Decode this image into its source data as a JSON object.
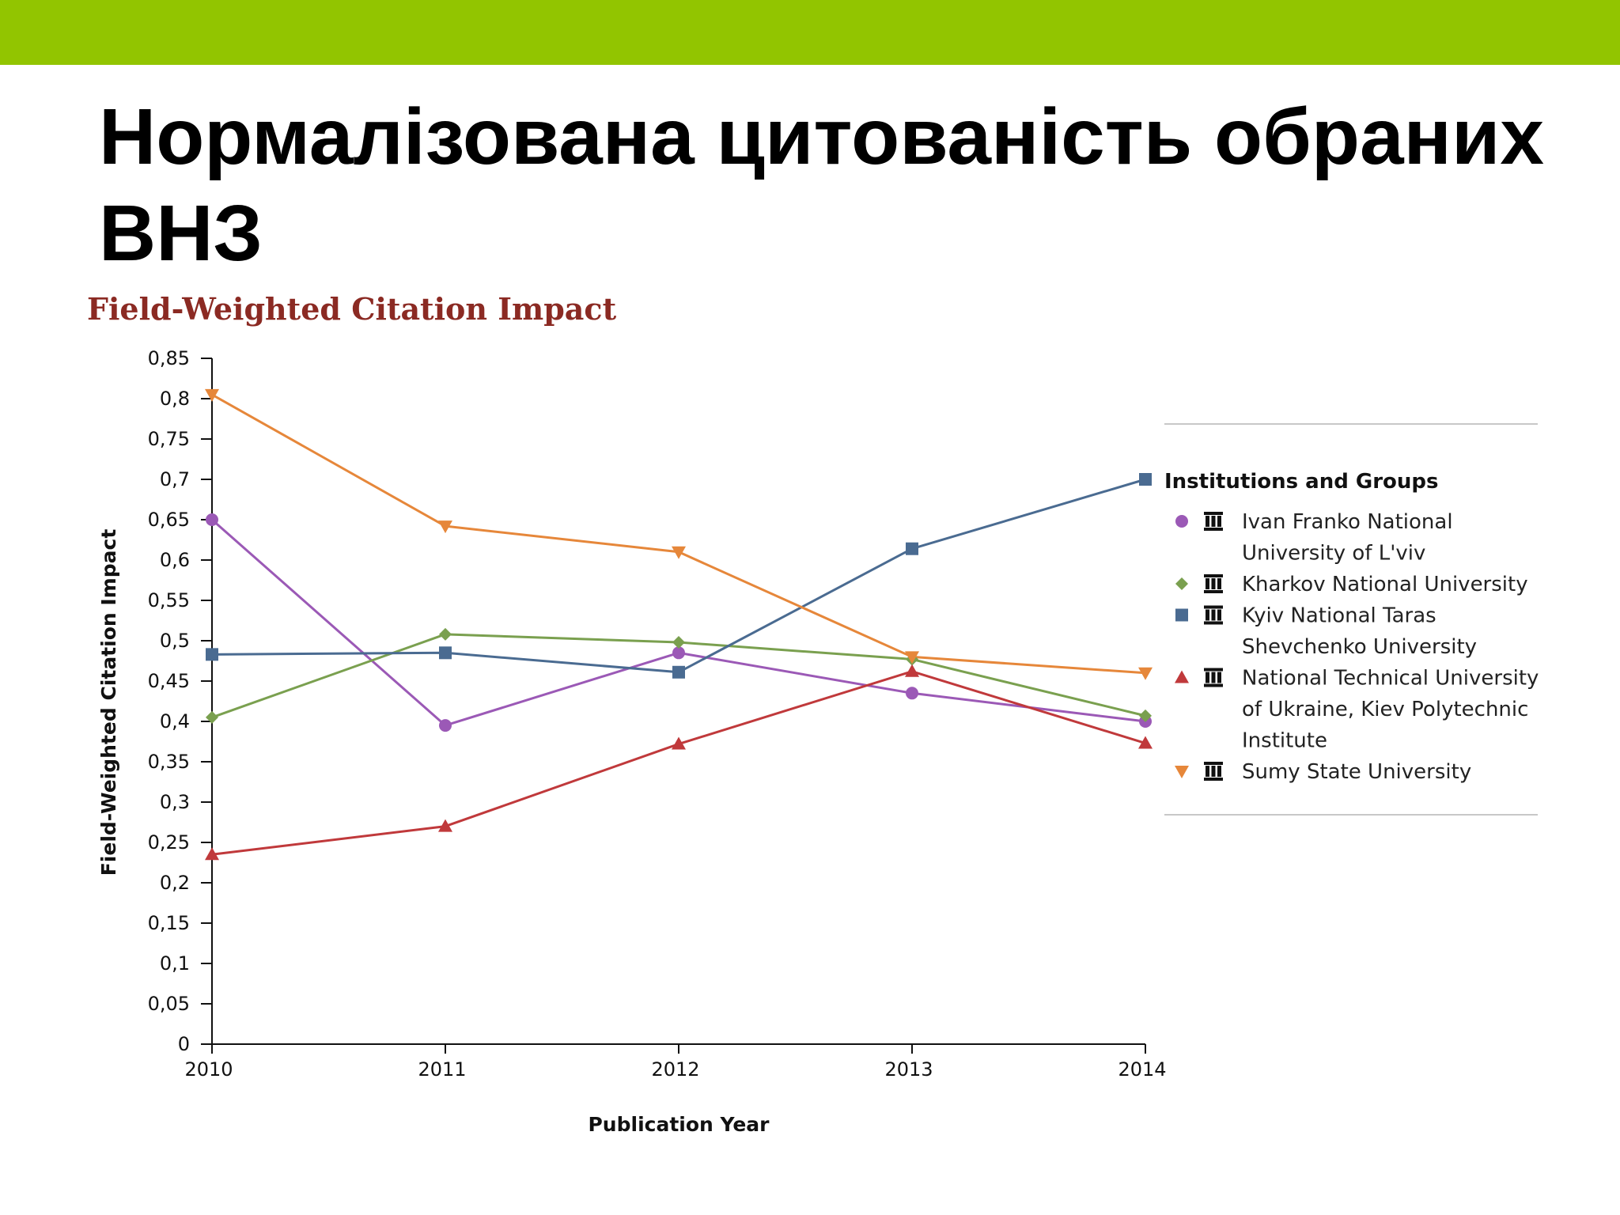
{
  "slide": {
    "title": "Нормалізована цитованість обраних ВНЗ"
  },
  "colors": {
    "top_bar": "#92c500",
    "chart_title": "#8b2a23"
  },
  "chart_data": {
    "type": "line",
    "title": "Field-Weighted Citation Impact",
    "xlabel": "Publication Year",
    "ylabel": "Field-Weighted Citation Impact",
    "x": [
      2010,
      2011,
      2012,
      2013,
      2014
    ],
    "x_tick_labels": [
      "2010",
      "2011",
      "2012",
      "2013",
      "2014"
    ],
    "ylim": [
      0,
      0.85
    ],
    "y_ticks": [
      0,
      0.05,
      0.1,
      0.15,
      0.2,
      0.25,
      0.3,
      0.35,
      0.4,
      0.45,
      0.5,
      0.55,
      0.6,
      0.65,
      0.7,
      0.75,
      0.8,
      0.85
    ],
    "y_tick_labels": [
      "0",
      "0,05",
      "0,1",
      "0,15",
      "0,2",
      "0,25",
      "0,3",
      "0,35",
      "0,4",
      "0,45",
      "0,5",
      "0,55",
      "0,6",
      "0,65",
      "0,7",
      "0,75",
      "0,8",
      "0,85"
    ],
    "grid": false,
    "legend": {
      "title": "Institutions and Groups",
      "position": "right",
      "icon": "institution-icon"
    },
    "series": [
      {
        "name": "Ivan Franko National University of L'viv",
        "name_lines": [
          "Ivan Franko National",
          "University of L'viv"
        ],
        "color": "#9b59b6",
        "marker": "circle",
        "values": [
          0.65,
          0.395,
          0.485,
          0.435,
          0.4
        ]
      },
      {
        "name": "Kharkov National University",
        "name_lines": [
          "Kharkov National University"
        ],
        "color": "#7aa04f",
        "marker": "diamond",
        "values": [
          0.405,
          0.508,
          0.498,
          0.477,
          0.407
        ]
      },
      {
        "name": "Kyiv National Taras Shevchenko University",
        "name_lines": [
          "Kyiv National Taras",
          "Shevchenko University"
        ],
        "color": "#4a6b91",
        "marker": "square",
        "values": [
          0.483,
          0.485,
          0.461,
          0.614,
          0.7
        ]
      },
      {
        "name": "National Technical University of Ukraine, Kiev Polytechnic Institute",
        "name_lines": [
          "National Technical University",
          "of Ukraine, Kiev Polytechnic",
          "Institute"
        ],
        "color": "#c0393b",
        "marker": "triangle-up",
        "values": [
          0.235,
          0.27,
          0.372,
          0.462,
          0.373
        ]
      },
      {
        "name": "Sumy State University",
        "name_lines": [
          "Sumy State University"
        ],
        "color": "#e6873a",
        "marker": "triangle-down",
        "values": [
          0.805,
          0.642,
          0.61,
          0.48,
          0.46
        ]
      }
    ]
  }
}
